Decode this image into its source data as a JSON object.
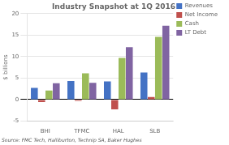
{
  "chart_data": {
    "type": "bar",
    "title": "Industry Snapshot at 1Q 2016",
    "categories": [
      "BHI",
      "TFMC",
      "HAL",
      "SLB"
    ],
    "series": [
      {
        "name": "Revenues",
        "color": "#4472C4",
        "values": [
          2.7,
          4.3,
          4.2,
          6.3
        ]
      },
      {
        "name": "Net Income",
        "color": "#C0504D",
        "values": [
          -0.6,
          -0.3,
          -2.3,
          0.6
        ]
      },
      {
        "name": "Cash",
        "color": "#9BBB59",
        "values": [
          2.1,
          6.1,
          9.7,
          14.6
        ]
      },
      {
        "name": "LT Debt",
        "color": "#8064A2",
        "values": [
          3.8,
          3.9,
          12.2,
          17.2
        ]
      }
    ],
    "ylabel": "$ billions",
    "ylim": [
      -5,
      20
    ],
    "yticks": [
      -5,
      0,
      5,
      10,
      15,
      20
    ],
    "grid": true,
    "legend": "right",
    "annotations": [
      "Source: FMC Tech, Halliburton, Technip SA, Baker Hughes"
    ]
  }
}
